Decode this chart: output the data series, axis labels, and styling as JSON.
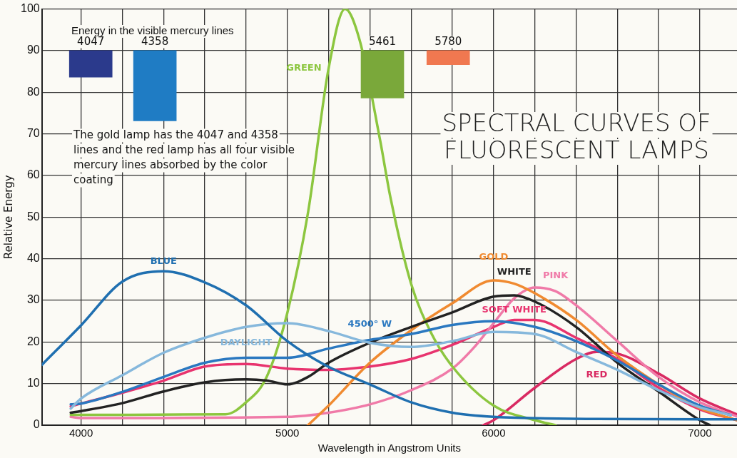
{
  "chart_data": {
    "type": "line",
    "title": "SPECTRAL CURVES OF FLUORESCENT LAMPS",
    "xlabel": "Wavelength in Angstrom Units",
    "ylabel": "Relative Energy",
    "xlim": [
      3810,
      7180
    ],
    "ylim": [
      0,
      100
    ],
    "xticks": [
      {
        "value": 4000,
        "label": "4000"
      },
      {
        "value": 4200,
        "label": null
      },
      {
        "value": 4400,
        "label": null
      },
      {
        "value": 4600,
        "label": null
      },
      {
        "value": 4800,
        "label": null
      },
      {
        "value": 5000,
        "label": "5000"
      },
      {
        "value": 5200,
        "label": null
      },
      {
        "value": 5400,
        "label": null
      },
      {
        "value": 5600,
        "label": null
      },
      {
        "value": 5800,
        "label": null
      },
      {
        "value": 6000,
        "label": "6000"
      },
      {
        "value": 6200,
        "label": null
      },
      {
        "value": 6400,
        "label": null
      },
      {
        "value": 6600,
        "label": null
      },
      {
        "value": 6800,
        "label": null
      },
      {
        "value": 7000,
        "label": "7000"
      }
    ],
    "yticks": [
      0,
      10,
      20,
      30,
      40,
      50,
      60,
      70,
      80,
      90,
      100
    ],
    "grid": true,
    "series": [
      {
        "type": "bar",
        "x": [
          4047,
          4358,
          5461,
          5780
        ],
        "base": [
          83.6,
          73.1,
          78.6,
          86.6
        ],
        "values": [
          6.4,
          16.9,
          11.4,
          3.4
        ],
        "colors": [
          "#2b3a8c",
          "#1f7cc4",
          "#7aa83a",
          "#f07850"
        ]
      },
      {
        "name": "BLUE",
        "color": "#1f6fb0",
        "x": [
          3810,
          4000,
          4200,
          4400,
          4600,
          4800,
          5000,
          5200,
          5400,
          5600,
          5800,
          6000,
          6500,
          7000,
          7180
        ],
        "values": [
          14.5,
          24,
          34.5,
          37,
          34.3,
          28.8,
          20.2,
          14,
          9.8,
          5.5,
          3,
          2,
          1.5,
          1.4,
          1.4
        ]
      },
      {
        "name": "DAYLIGHT",
        "color": "#86b8dc",
        "x": [
          3950,
          4000,
          4200,
          4400,
          4600,
          4800,
          5000,
          5200,
          5400,
          5600,
          5800,
          6000,
          6200,
          6400,
          6600,
          6800,
          7000,
          7150
        ],
        "values": [
          4,
          6.4,
          12,
          17.4,
          21,
          23.6,
          24.5,
          22.6,
          19.8,
          18.8,
          20.2,
          22.4,
          21.9,
          17.6,
          13.3,
          8.4,
          4.3,
          2.4
        ]
      },
      {
        "name": "4500° W",
        "color": "#2a78c0",
        "x": [
          3950,
          4000,
          4200,
          4400,
          4600,
          4800,
          5000,
          5200,
          5400,
          5600,
          5800,
          6000,
          6200,
          6400,
          6600,
          6800,
          7000,
          7150
        ],
        "values": [
          5,
          5.2,
          8,
          11.6,
          15,
          16.2,
          16.2,
          18.4,
          20.5,
          21.9,
          24.1,
          25,
          23.6,
          20.2,
          15.5,
          9.8,
          4.7,
          2.4
        ]
      },
      {
        "name": "WHITE",
        "color": "#222222",
        "x": [
          3950,
          4000,
          4200,
          4400,
          4600,
          4800,
          4900,
          5000,
          5100,
          5200,
          5400,
          5600,
          5800,
          6000,
          6100,
          6200,
          6400,
          6600,
          6800,
          7000,
          7050
        ],
        "values": [
          3,
          3.4,
          5.3,
          8.1,
          10.3,
          11,
          10.7,
          9.8,
          11.6,
          15,
          19.8,
          23.6,
          27.1,
          30.9,
          31.2,
          29.7,
          23.6,
          15,
          8.1,
          1.2,
          0
        ]
      },
      {
        "name": "GREEN",
        "color": "#8cc63f",
        "x": [
          3950,
          4700,
          4800,
          4900,
          5000,
          5100,
          5200,
          5280,
          5350,
          5450,
          5500,
          5600,
          5700,
          5800,
          6000,
          6200,
          6300
        ],
        "values": [
          2.5,
          2.6,
          5.5,
          11.6,
          27,
          51,
          85.7,
          100,
          92.6,
          68.4,
          54.7,
          34,
          21.9,
          14.1,
          4.7,
          1.2,
          0
        ]
      },
      {
        "name": "GOLD",
        "color": "#f08a30",
        "x": [
          5100,
          5200,
          5400,
          5600,
          5800,
          6000,
          6100,
          6200,
          6400,
          6600,
          6800,
          7000,
          7180
        ],
        "values": [
          0,
          4.7,
          15,
          22.8,
          29.3,
          34.8,
          34,
          31.7,
          25.3,
          16.7,
          9.8,
          4.1,
          1.2
        ]
      },
      {
        "name": "PINK",
        "color": "#f07aa8",
        "x": [
          3950,
          4000,
          5000,
          5200,
          5400,
          5600,
          5800,
          5900,
          6000,
          6100,
          6200,
          6300,
          6400,
          6600,
          6800,
          7000,
          7180
        ],
        "values": [
          2,
          1.7,
          2,
          3,
          5,
          8.4,
          13.6,
          18.4,
          24.5,
          30.5,
          33.1,
          32.2,
          28.8,
          20.2,
          11.6,
          5.5,
          2.1
        ]
      },
      {
        "name": "SOFT WHITE",
        "color": "#e8336e",
        "x": [
          3950,
          4000,
          4200,
          4400,
          4600,
          4800,
          5000,
          5200,
          5400,
          5600,
          5800,
          6000,
          6100,
          6200,
          6400,
          6600,
          6800,
          7000,
          7180
        ],
        "values": [
          4.5,
          5.2,
          7.8,
          10.7,
          14.1,
          14.7,
          13.6,
          13.3,
          14.1,
          15.9,
          19.3,
          23.6,
          25.3,
          25.3,
          21,
          15.9,
          9,
          3.8,
          1.2
        ]
      },
      {
        "name": "RED",
        "color": "#d92a62",
        "x": [
          5950,
          6000,
          6200,
          6400,
          6500,
          6600,
          6800,
          7000,
          7180
        ],
        "values": [
          0,
          1.2,
          9,
          15.9,
          17.6,
          17.2,
          12.4,
          6.4,
          2.6
        ]
      }
    ],
    "annotations": [
      "Energy in the visible mercury lines",
      "4047",
      "4358",
      "5461",
      "5780",
      "The gold lamp has the 4047 and 4358 lines and the red lamp has all four visible mercury lines absorbed by the color coating"
    ]
  }
}
